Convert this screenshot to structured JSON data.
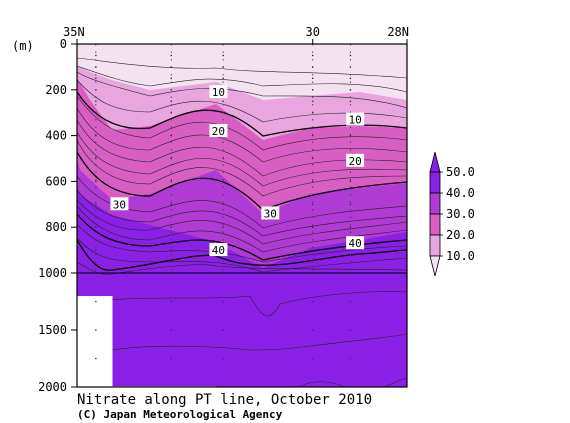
{
  "chart_data": {
    "type": "heatmap",
    "title": "Nitrate along PT line, October 2010",
    "credit": "(C) Japan Meteorological Agency",
    "ylabel": "(m)",
    "x_ticks": [
      {
        "lat": 35,
        "label": "35N"
      },
      {
        "lat": 30,
        "label": "30"
      },
      {
        "lat": 28,
        "label": "28N"
      }
    ],
    "xlim": [
      35,
      28
    ],
    "y_ticks": [
      {
        "depth": 0,
        "label": "0"
      },
      {
        "depth": 200,
        "label": "200"
      },
      {
        "depth": 400,
        "label": "400"
      },
      {
        "depth": 600,
        "label": "600"
      },
      {
        "depth": 800,
        "label": "800"
      },
      {
        "depth": 1000,
        "label": "1000"
      },
      {
        "depth": 1500,
        "label": "1500"
      },
      {
        "depth": 2000,
        "label": "2000"
      }
    ],
    "ylim": [
      0,
      2000
    ],
    "y_scale_break": 1000,
    "stations_lat": [
      34.6,
      33.0,
      31.9,
      30.0,
      29.2
    ],
    "colorbar": {
      "labels": [
        "10.0",
        "20.0",
        "30.0",
        "40.0",
        "50.0"
      ],
      "levels": [
        0,
        10,
        20,
        30,
        40,
        50
      ],
      "colors": [
        "#f5e2f1",
        "#e9a5dd",
        "#d95ec4",
        "#b03ad4",
        "#8a20e6"
      ]
    },
    "contour_labels": [
      {
        "value": 10,
        "lat": 32.0,
        "depth": 210,
        "label": "10"
      },
      {
        "value": 10,
        "lat": 29.1,
        "depth": 330,
        "label": "10"
      },
      {
        "value": 20,
        "lat": 32.0,
        "depth": 380,
        "label": "20"
      },
      {
        "value": 20,
        "lat": 29.1,
        "depth": 510,
        "label": "20"
      },
      {
        "value": 30,
        "lat": 34.1,
        "depth": 700,
        "label": "30"
      },
      {
        "value": 30,
        "lat": 30.9,
        "depth": 740,
        "label": "30"
      },
      {
        "value": 40,
        "lat": 32.0,
        "depth": 900,
        "label": "40"
      },
      {
        "value": 40,
        "lat": 29.1,
        "depth": 870,
        "label": "40"
      }
    ]
  }
}
